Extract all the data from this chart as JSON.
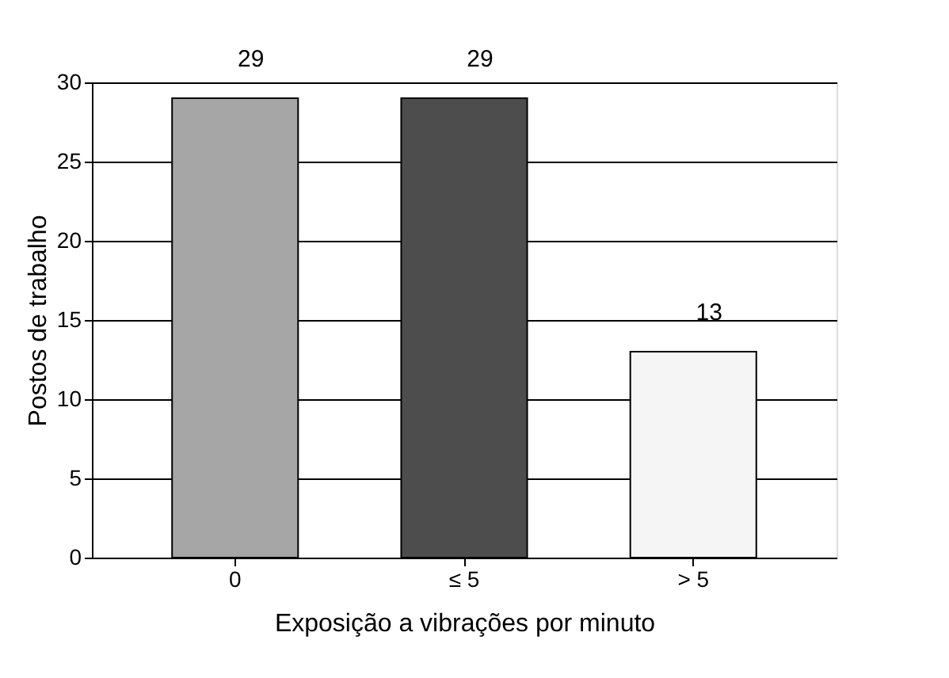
{
  "chart_data": {
    "type": "bar",
    "xlabel": "Exposição a vibrações por minuto",
    "ylabel": "Postos de trabalho",
    "categories": [
      "0",
      "≤ 5",
      "> 5"
    ],
    "values": [
      29,
      29,
      13
    ],
    "colors": [
      "#a6a6a6",
      "#4d4d4d",
      "#f5f5f5"
    ],
    "ylim": [
      0,
      30
    ],
    "yticks": [
      0,
      5,
      10,
      15,
      20,
      25,
      30
    ],
    "grid": "y",
    "data_labels": true
  }
}
